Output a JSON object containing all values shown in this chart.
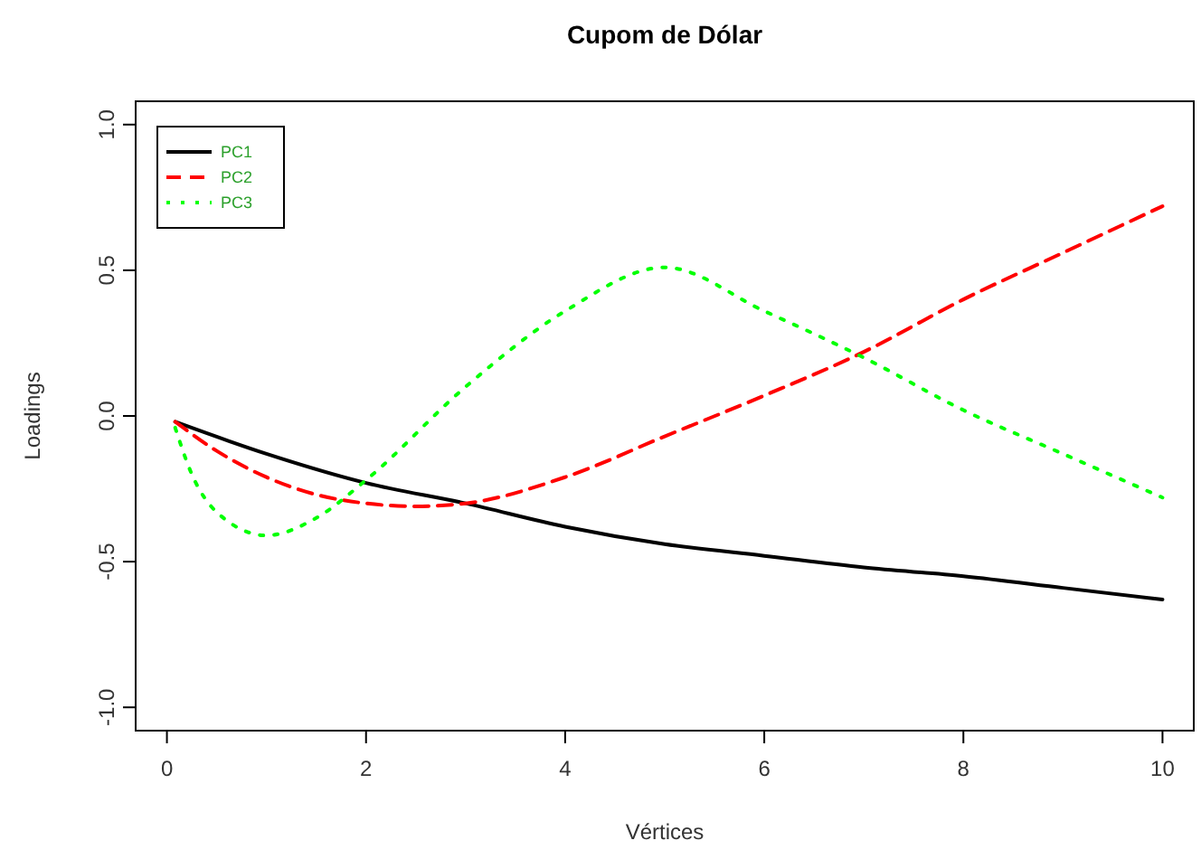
{
  "chart_data": {
    "type": "line",
    "title": "Cupom de Dólar",
    "xlabel": "Vértices",
    "ylabel": "Loadings",
    "xlim": [
      -0.314,
      10.314
    ],
    "ylim": [
      -1.08,
      1.08
    ],
    "xticks": [
      0,
      2,
      4,
      6,
      8,
      10
    ],
    "yticks": [
      {
        "value": -1,
        "label": "-1.0"
      },
      {
        "value": -0.5,
        "label": "-0.5"
      },
      {
        "value": 0,
        "label": "0.0"
      },
      {
        "value": 0.5,
        "label": "0.5"
      },
      {
        "value": 1,
        "label": "1.0"
      }
    ],
    "legend": "top left",
    "grid": false,
    "series": [
      {
        "name": "PC1",
        "color": "#000000",
        "line_style": "solid",
        "x": [
          0.083,
          1,
          2,
          3,
          4,
          5,
          6,
          7,
          8,
          9,
          10
        ],
        "values": [
          -0.02,
          -0.13,
          -0.23,
          -0.3,
          -0.38,
          -0.44,
          -0.48,
          -0.52,
          -0.55,
          -0.59,
          -0.63
        ]
      },
      {
        "name": "PC2",
        "color": "#ff0000",
        "line_style": "dashed",
        "x": [
          0.083,
          0.5,
          1,
          1.5,
          2,
          2.5,
          3,
          4,
          5,
          6,
          7,
          8,
          9,
          10
        ],
        "values": [
          -0.02,
          -0.12,
          -0.21,
          -0.27,
          -0.3,
          -0.31,
          -0.3,
          -0.21,
          -0.07,
          0.07,
          0.22,
          0.4,
          0.56,
          0.72
        ]
      },
      {
        "name": "PC3",
        "color": "#00ff00",
        "line_style": "dotted",
        "x": [
          0.083,
          0.25,
          0.5,
          1,
          1.5,
          2,
          3,
          4,
          5,
          6,
          7,
          8,
          9,
          10
        ],
        "values": [
          -0.04,
          -0.2,
          -0.33,
          -0.41,
          -0.35,
          -0.22,
          0.1,
          0.36,
          0.51,
          0.36,
          0.2,
          0.02,
          -0.13,
          -0.28
        ]
      }
    ]
  }
}
